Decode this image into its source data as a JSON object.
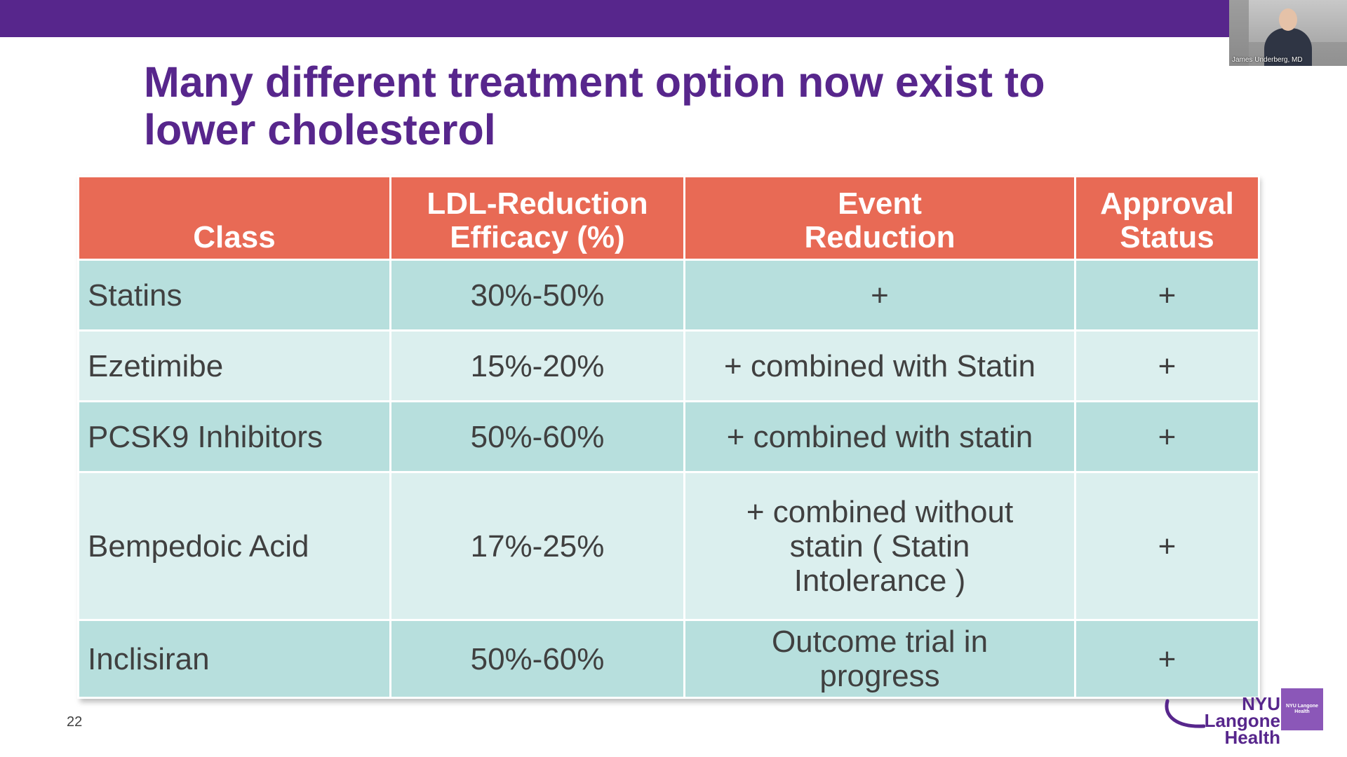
{
  "slide": {
    "title_lines": [
      "Many different treatment option now exist to",
      "lower cholesterol"
    ],
    "slide_number": "22"
  },
  "video": {
    "caption": "James Underberg, MD"
  },
  "table": {
    "headers": [
      [
        "Class"
      ],
      [
        "LDL-Reduction",
        "Efficacy (%)"
      ],
      [
        "Event",
        "Reduction"
      ],
      [
        "Approval",
        "Status"
      ]
    ],
    "rows": [
      {
        "class": "Statins",
        "efficacy": "30%-50%",
        "event": [
          "+"
        ],
        "approval": "+"
      },
      {
        "class": "Ezetimibe",
        "efficacy": "15%-20%",
        "event": [
          "+ combined with Statin"
        ],
        "approval": "+"
      },
      {
        "class": "PCSK9 Inhibitors",
        "efficacy": "50%-60%",
        "event": [
          "+ combined with statin"
        ],
        "approval": "+"
      },
      {
        "class": "Bempedoic Acid",
        "efficacy": "17%-25%",
        "event": [
          "+ combined without",
          "statin ( Statin",
          "Intolerance )"
        ],
        "approval": "+"
      },
      {
        "class": "Inclisiran",
        "efficacy": "50%-60%",
        "event": [
          "Outcome trial in",
          "progress"
        ],
        "approval": "+"
      }
    ]
  },
  "logo": {
    "line1": "NYU Langone",
    "line2": "Health",
    "square_line1": "NYU Langone",
    "square_line2": "Health"
  },
  "colors": {
    "brand_purple": "#57268c",
    "header_coral": "#e86a55",
    "row_dark": "#b7dfdd",
    "row_light": "#dbefee"
  }
}
